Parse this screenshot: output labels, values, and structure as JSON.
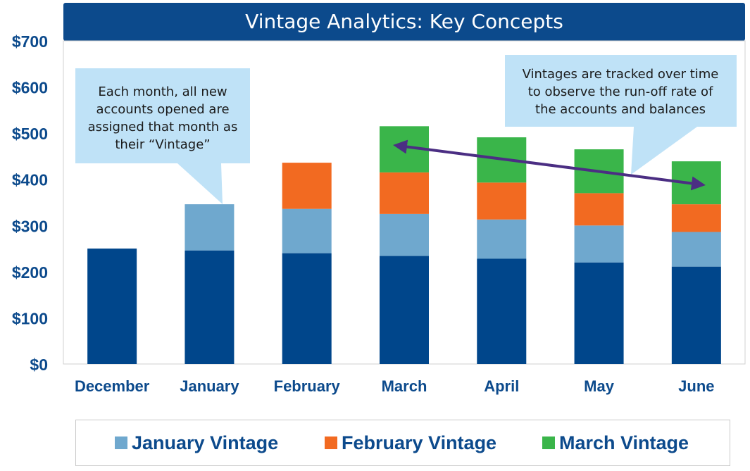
{
  "title": "Vintage Analytics: Key Concepts",
  "callouts": {
    "left": "Each month, all new accounts opened are assigned that month as their “Vintage”",
    "right": "Vintages are tracked over time to observe the run-off rate of the accounts and balances"
  },
  "colors": {
    "base": "#00468b",
    "january": "#6fa8ce",
    "february": "#f26a21",
    "march": "#3ab54a",
    "arrow": "#4b2e83",
    "callout": "#bfe2f7",
    "axis_text": "#0c4a8c"
  },
  "legend": [
    {
      "label": "January Vintage",
      "color": "#6fa8ce"
    },
    {
      "label": "February Vintage",
      "color": "#f26a21"
    },
    {
      "label": "March Vintage",
      "color": "#3ab54a"
    }
  ],
  "chart_data": {
    "type": "bar",
    "stacked": true,
    "categories": [
      "December",
      "January",
      "February",
      "March",
      "April",
      "May",
      "June"
    ],
    "series": [
      {
        "values": [
          250,
          246,
          240,
          234,
          228,
          220,
          211
        ]
      },
      {
        "name": "January Vintage",
        "values": [
          0,
          100,
          96,
          91,
          85,
          80,
          75
        ]
      },
      {
        "name": "February Vintage",
        "values": [
          0,
          0,
          100,
          90,
          80,
          70,
          60
        ]
      },
      {
        "name": "March Vintage",
        "values": [
          0,
          0,
          0,
          100,
          98,
          95,
          93
        ]
      }
    ],
    "ylim": [
      0,
      700
    ],
    "yticks": [
      "$0",
      "$100",
      "$200",
      "$300",
      "$400",
      "$500",
      "$600",
      "$700"
    ],
    "legend_position": "bottom",
    "grid": false
  }
}
